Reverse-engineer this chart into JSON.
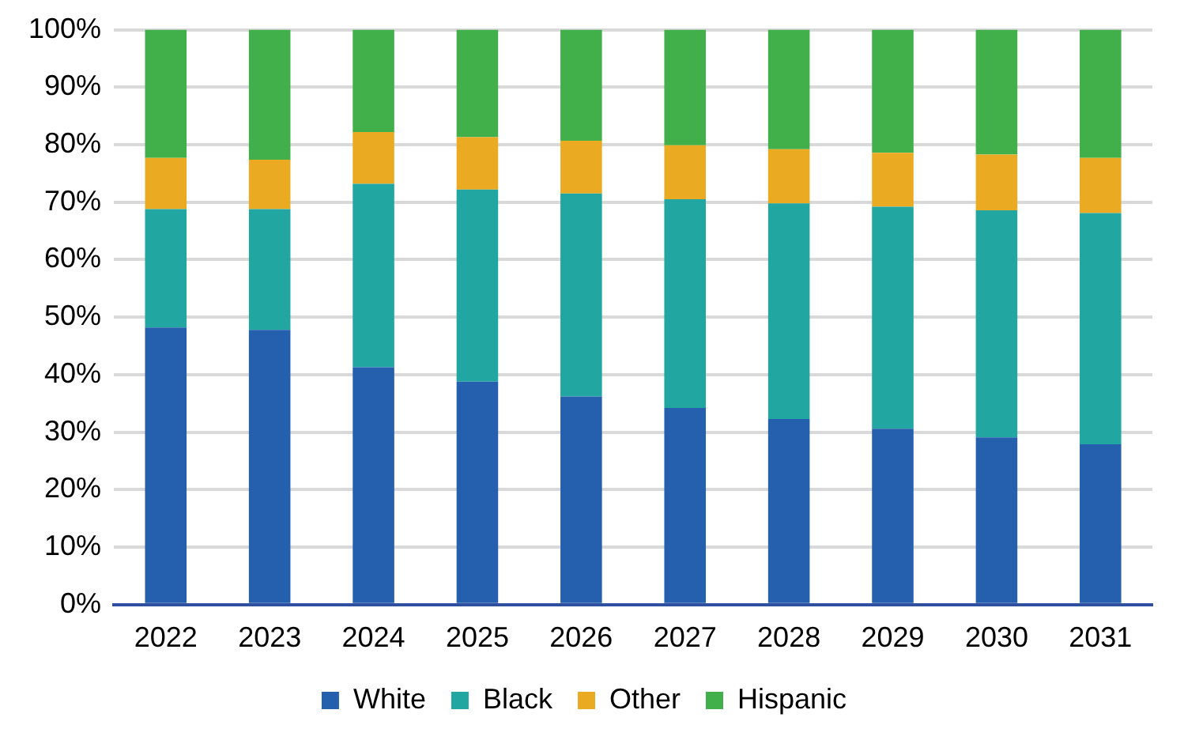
{
  "chart_data": {
    "type": "bar",
    "stacked": true,
    "categories": [
      "2022",
      "2023",
      "2024",
      "2025",
      "2026",
      "2027",
      "2028",
      "2029",
      "2030",
      "2031"
    ],
    "series": [
      {
        "name": "White",
        "color": "#2560ae",
        "values": [
          48.2,
          47.8,
          41.3,
          38.8,
          36.2,
          34.2,
          32.3,
          30.6,
          29.1,
          27.9
        ]
      },
      {
        "name": "Black",
        "color": "#21a6a2",
        "values": [
          20.6,
          21.0,
          31.9,
          33.4,
          35.3,
          36.3,
          37.5,
          38.6,
          39.5,
          40.2
        ]
      },
      {
        "name": "Other",
        "color": "#eaab22",
        "values": [
          8.9,
          8.6,
          9.0,
          9.1,
          9.2,
          9.4,
          9.4,
          9.4,
          9.7,
          9.6
        ]
      },
      {
        "name": "Hispanic",
        "color": "#42b04a",
        "values": [
          22.3,
          22.6,
          17.8,
          18.7,
          19.3,
          20.1,
          20.8,
          21.4,
          21.7,
          22.3
        ]
      }
    ],
    "ylim": [
      0,
      100
    ],
    "yticks": [
      {
        "value": 0,
        "label": "0%"
      },
      {
        "value": 10,
        "label": "10%"
      },
      {
        "value": 20,
        "label": "20%"
      },
      {
        "value": 30,
        "label": "30%"
      },
      {
        "value": 40,
        "label": "40%"
      },
      {
        "value": 50,
        "label": "50%"
      },
      {
        "value": 60,
        "label": "60%"
      },
      {
        "value": 70,
        "label": "70%"
      },
      {
        "value": 80,
        "label": "80%"
      },
      {
        "value": 90,
        "label": "90%"
      },
      {
        "value": 100,
        "label": "100%"
      }
    ],
    "grid": "y",
    "legend": "bottom"
  }
}
